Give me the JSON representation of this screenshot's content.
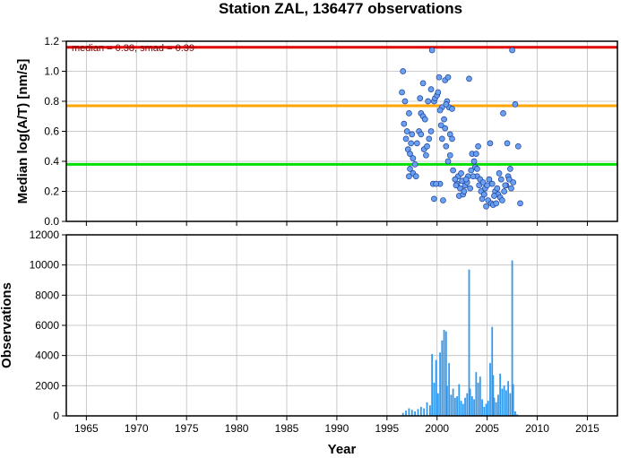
{
  "chart_data": [
    {
      "type": "scatter",
      "title": "Station ZAL, 136477 observations",
      "xlabel": "",
      "ylabel": "Median log(A/T) [nm/s]",
      "xlim": [
        1963,
        2018
      ],
      "ylim": [
        0,
        1.2
      ],
      "xticks": [
        1965,
        1970,
        1975,
        1980,
        1985,
        1990,
        1995,
        2000,
        2005,
        2010,
        2015
      ],
      "yticks": [
        "0.0",
        "0.2",
        "0.4",
        "0.6",
        "0.8",
        "1.0",
        "1.2"
      ],
      "grid": true,
      "annotation": "median = 0.38, smad = 0.39",
      "reference_lines": [
        {
          "y": 1.16,
          "color": "#e00000"
        },
        {
          "y": 0.77,
          "color": "#ffa500"
        },
        {
          "y": 0.38,
          "color": "#00e000"
        }
      ],
      "point_color": "#6aa0f0",
      "points": [
        [
          1996.6,
          1.0
        ],
        [
          1996.5,
          0.86
        ],
        [
          1996.8,
          0.8
        ],
        [
          1997.0,
          0.6
        ],
        [
          1996.7,
          0.65
        ],
        [
          1997.2,
          0.72
        ],
        [
          1996.9,
          0.55
        ],
        [
          1997.1,
          0.48
        ],
        [
          1997.3,
          0.45
        ],
        [
          1997.4,
          0.52
        ],
        [
          1997.5,
          0.58
        ],
        [
          1997.6,
          0.42
        ],
        [
          1997.3,
          0.35
        ],
        [
          1997.6,
          0.32
        ],
        [
          1997.9,
          0.3
        ],
        [
          1997.2,
          0.3
        ],
        [
          1997.8,
          0.38
        ],
        [
          1998.0,
          0.52
        ],
        [
          1998.2,
          0.6
        ],
        [
          1998.4,
          0.72
        ],
        [
          1998.6,
          0.92
        ],
        [
          1998.3,
          0.82
        ],
        [
          1998.6,
          0.7
        ],
        [
          1998.8,
          0.68
        ],
        [
          1998.4,
          0.58
        ],
        [
          1998.7,
          0.48
        ],
        [
          1998.9,
          0.44
        ],
        [
          1999.0,
          0.5
        ],
        [
          1999.2,
          0.55
        ],
        [
          1999.4,
          0.6
        ],
        [
          1999.1,
          0.8
        ],
        [
          1999.4,
          0.88
        ],
        [
          1999.7,
          0.8
        ],
        [
          1999.8,
          0.82
        ],
        [
          2000.0,
          0.84
        ],
        [
          2000.1,
          0.86
        ],
        [
          1999.5,
          1.14
        ],
        [
          2000.2,
          0.96
        ],
        [
          2000.5,
          0.76
        ],
        [
          2000.3,
          0.74
        ],
        [
          2000.8,
          0.94
        ],
        [
          2001.1,
          0.96
        ],
        [
          2000.4,
          0.64
        ],
        [
          2000.7,
          0.68
        ],
        [
          2000.8,
          0.62
        ],
        [
          2001.0,
          0.8
        ],
        [
          2001.2,
          0.76
        ],
        [
          2001.5,
          0.75
        ],
        [
          2000.9,
          0.78
        ],
        [
          2001.3,
          0.58
        ],
        [
          2001.5,
          0.55
        ],
        [
          2000.5,
          0.55
        ],
        [
          2000.9,
          0.5
        ],
        [
          2001.1,
          0.4
        ],
        [
          2001.3,
          0.44
        ],
        [
          2000.3,
          0.25
        ],
        [
          1999.6,
          0.25
        ],
        [
          1999.9,
          0.25
        ],
        [
          1999.7,
          0.15
        ],
        [
          2000.6,
          0.14
        ],
        [
          2002.1,
          0.3
        ],
        [
          2002.0,
          0.25
        ],
        [
          2002.3,
          0.22
        ],
        [
          2002.5,
          0.27
        ],
        [
          2002.2,
          0.17
        ],
        [
          2002.6,
          0.18
        ],
        [
          2002.8,
          0.24
        ],
        [
          2002.7,
          0.2
        ],
        [
          2003.0,
          0.26
        ],
        [
          2003.1,
          0.3
        ],
        [
          2003.3,
          0.22
        ],
        [
          2003.2,
          0.95
        ],
        [
          2003.5,
          0.45
        ],
        [
          2003.7,
          0.4
        ],
        [
          2003.9,
          0.45
        ],
        [
          2003.8,
          0.36
        ],
        [
          2004.0,
          0.35
        ],
        [
          2004.1,
          0.5
        ],
        [
          2004.0,
          0.3
        ],
        [
          2004.3,
          0.28
        ],
        [
          2004.2,
          0.24
        ],
        [
          2004.4,
          0.2
        ],
        [
          2004.6,
          0.26
        ],
        [
          2004.5,
          0.15
        ],
        [
          2004.7,
          0.18
        ],
        [
          2004.8,
          0.22
        ],
        [
          2005.0,
          0.24
        ],
        [
          2005.2,
          0.28
        ],
        [
          2005.1,
          0.14
        ],
        [
          2005.4,
          0.12
        ],
        [
          2005.6,
          0.11
        ],
        [
          2005.5,
          0.25
        ],
        [
          2005.8,
          0.2
        ],
        [
          2006.0,
          0.22
        ],
        [
          2006.1,
          0.18
        ],
        [
          2006.3,
          0.16
        ],
        [
          2006.5,
          0.14
        ],
        [
          2006.7,
          0.2
        ],
        [
          2006.9,
          0.24
        ],
        [
          2007.1,
          0.3
        ],
        [
          2007.2,
          0.28
        ],
        [
          2006.2,
          0.32
        ],
        [
          2006.4,
          0.28
        ],
        [
          2006.6,
          0.72
        ],
        [
          2005.3,
          0.52
        ],
        [
          2007.0,
          0.52
        ],
        [
          2007.3,
          0.35
        ],
        [
          2007.6,
          0.26
        ],
        [
          2007.4,
          0.22
        ],
        [
          2007.5,
          1.14
        ],
        [
          2007.8,
          0.78
        ],
        [
          2008.1,
          0.5
        ],
        [
          2008.3,
          0.12
        ],
        [
          2001.6,
          0.34
        ],
        [
          2001.8,
          0.28
        ],
        [
          2002.4,
          0.32
        ],
        [
          2003.4,
          0.34
        ],
        [
          2002.9,
          0.28
        ],
        [
          2001.9,
          0.24
        ],
        [
          2005.7,
          0.17
        ],
        [
          2006.8,
          0.24
        ],
        [
          2003.6,
          0.3
        ],
        [
          2004.9,
          0.1
        ],
        [
          2005.9,
          0.12
        ]
      ]
    },
    {
      "type": "bar",
      "title": "",
      "xlabel": "Year",
      "ylabel": "Observations",
      "xlim": [
        1963,
        2018
      ],
      "ylim": [
        0,
        12000
      ],
      "xticks": [
        1965,
        1970,
        1975,
        1980,
        1985,
        1990,
        1995,
        2000,
        2005,
        2010,
        2015
      ],
      "yticks": [
        "0",
        "2000",
        "4000",
        "6000",
        "8000",
        "10000",
        "12000"
      ],
      "grid": true,
      "bar_color": "#3399ee",
      "x": [
        1996.6,
        1996.9,
        1997.2,
        1997.5,
        1997.8,
        1998.1,
        1998.4,
        1998.7,
        1999.0,
        1999.3,
        1999.5,
        1999.7,
        1999.9,
        2000.1,
        2000.3,
        2000.5,
        2000.7,
        2000.9,
        2001.0,
        2001.2,
        2001.4,
        2001.6,
        2001.8,
        2002.0,
        2002.2,
        2002.4,
        2002.6,
        2002.8,
        2003.0,
        2003.2,
        2003.3,
        2003.5,
        2003.7,
        2003.9,
        2004.1,
        2004.3,
        2004.5,
        2004.7,
        2004.9,
        2005.1,
        2005.3,
        2005.5,
        2005.6,
        2005.7,
        2005.9,
        2006.1,
        2006.3,
        2006.5,
        2006.7,
        2006.9,
        2007.1,
        2007.3,
        2007.5,
        2007.6,
        2007.8,
        2008.0
      ],
      "values": [
        200,
        350,
        500,
        400,
        300,
        450,
        600,
        500,
        900,
        700,
        4100,
        2200,
        3700,
        1500,
        4200,
        5000,
        5700,
        5600,
        2000,
        3500,
        1400,
        1800,
        1200,
        1300,
        2100,
        1000,
        800,
        1200,
        1500,
        9700,
        1800,
        1300,
        1100,
        2900,
        2200,
        2600,
        1100,
        600,
        800,
        1000,
        3500,
        5900,
        2700,
        1200,
        900,
        1400,
        2800,
        1800,
        2000,
        1700,
        2300,
        1500,
        10300,
        2100,
        300,
        100
      ]
    }
  ]
}
